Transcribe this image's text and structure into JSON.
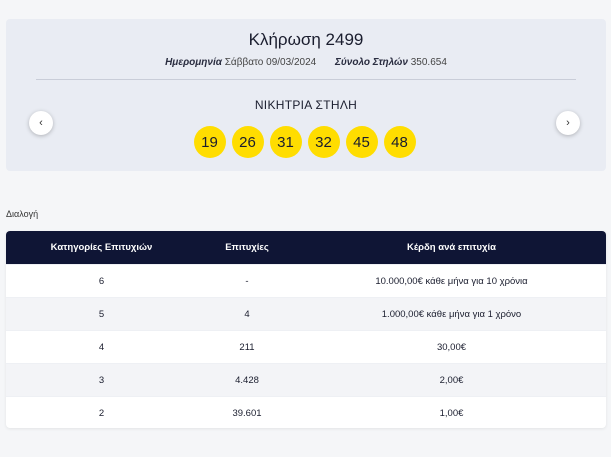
{
  "draw": {
    "title": "Κλήρωση 2499",
    "date_label": "Ημερομηνία",
    "date_value": "Σάββατο 09/03/2024",
    "columns_label": "Σύνολο Στηλών",
    "columns_value": "350.654",
    "winning_title": "ΝΙΚΗΤΡΙΑ ΣΤΗΛΗ",
    "numbers": [
      "19",
      "26",
      "31",
      "32",
      "45",
      "48"
    ],
    "ball_color": "#ffdd00",
    "prev_icon": "‹",
    "next_icon": "›"
  },
  "filter": {
    "label": "Διαλογή"
  },
  "table": {
    "header_color": "#0f1535",
    "headers": [
      "Κατηγορίες Επιτυχιών",
      "Επιτυχίες",
      "Κέρδη ανά επιτυχία"
    ],
    "rows": [
      [
        "6",
        "-",
        "10.000,00€ κάθε μήνα για 10 χρόνια"
      ],
      [
        "5",
        "4",
        "1.000,00€ κάθε μήνα για 1 χρόνο"
      ],
      [
        "4",
        "211",
        "30,00€"
      ],
      [
        "3",
        "4.428",
        "2,00€"
      ],
      [
        "2",
        "39.601",
        "1,00€"
      ]
    ]
  }
}
